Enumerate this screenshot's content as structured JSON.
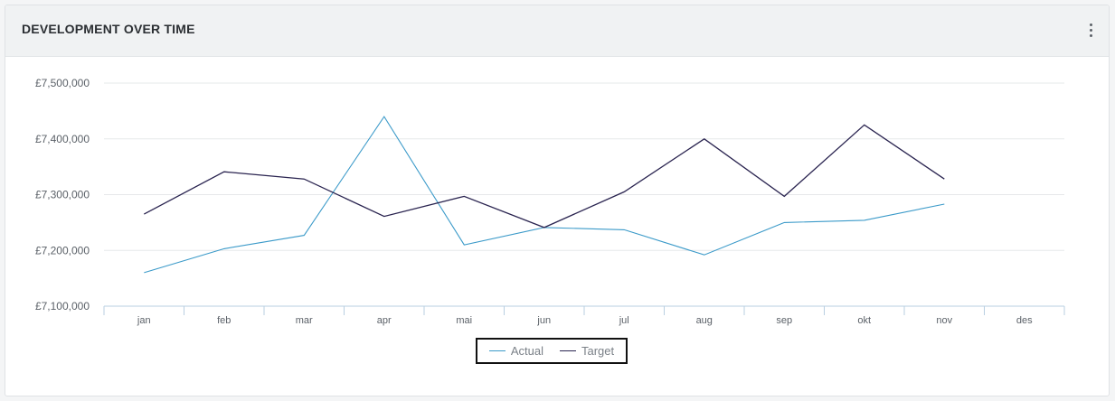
{
  "card": {
    "title": "DEVELOPMENT OVER TIME",
    "menu_icon": "more-vertical-icon"
  },
  "colors": {
    "actual": "#3b9ac9",
    "target": "#2a2450",
    "grid": "#e6e8ea",
    "axis": "#b9cfe2"
  },
  "chart_data": {
    "type": "line",
    "categories": [
      "jan",
      "feb",
      "mar",
      "apr",
      "mai",
      "jun",
      "jul",
      "aug",
      "sep",
      "okt",
      "nov",
      "des"
    ],
    "series": [
      {
        "name": "Actual",
        "values": [
          7160000,
          7203000,
          7227000,
          7440000,
          7210000,
          7241000,
          7237000,
          7192000,
          7250000,
          7254000,
          7283000,
          null
        ]
      },
      {
        "name": "Target",
        "values": [
          7265000,
          7341000,
          7328000,
          7261000,
          7297000,
          7241000,
          7305000,
          7400000,
          7297000,
          7425000,
          7328000,
          null
        ]
      }
    ],
    "y_ticks": [
      "£7,100,000",
      "£7,200,000",
      "£7,300,000",
      "£7,400,000",
      "£7,500,000"
    ],
    "ylim": [
      7100000,
      7500000
    ],
    "grid": true,
    "legend_position": "bottom-center",
    "title": "",
    "xlabel": "",
    "ylabel": ""
  }
}
